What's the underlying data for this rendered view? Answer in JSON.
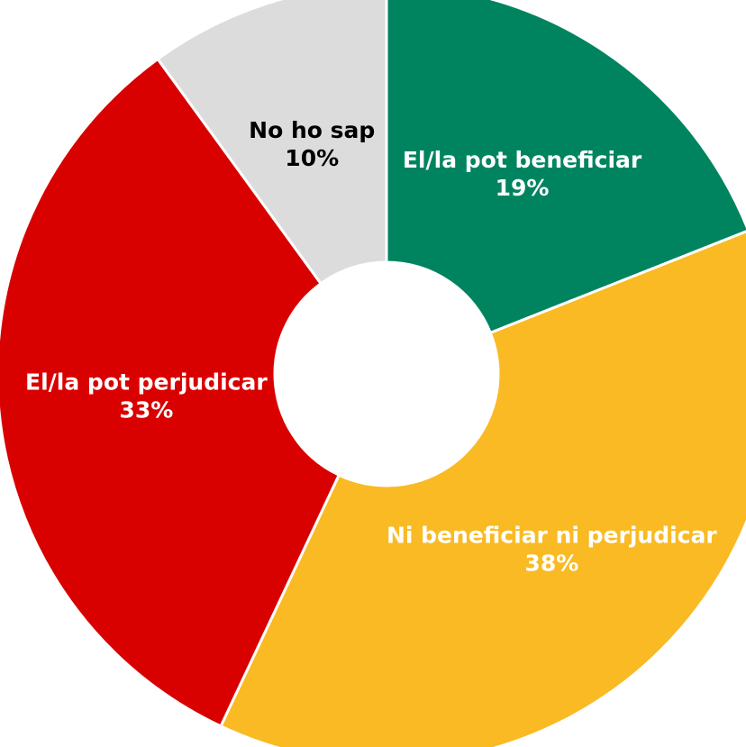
{
  "chart_data": {
    "type": "pie",
    "categories": [
      "El/la pot beneficiar",
      "Ni beneficiar ni perjudicar",
      "El/la pot perjudicar",
      "No ho sap"
    ],
    "values": [
      19,
      38,
      33,
      10
    ],
    "value_labels": [
      "19%",
      "38%",
      "33%",
      "10%"
    ],
    "colors": [
      "#00845F",
      "#F9BA23",
      "#D90000",
      "#DCDCDC"
    ],
    "label_colors": [
      "#ffffff",
      "#ffffff",
      "#ffffff",
      "#000000"
    ],
    "donut": true,
    "start_angle_deg": 0,
    "direction": "clockwise",
    "legend": "none"
  }
}
